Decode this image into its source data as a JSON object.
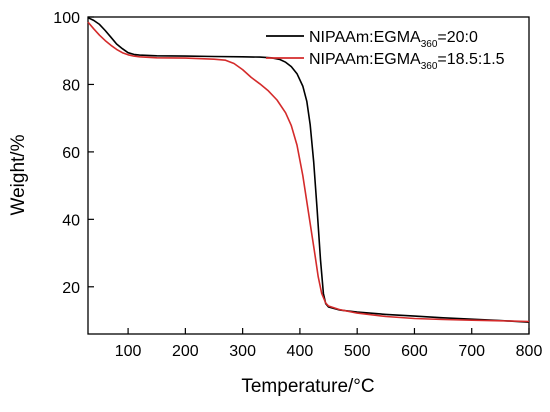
{
  "chart_data": {
    "type": "line",
    "xlabel": "Temperature/°C",
    "ylabel": "Weight/%",
    "xlim": [
      30,
      800
    ],
    "ylim": [
      6,
      100
    ],
    "xticks": [
      100,
      200,
      300,
      400,
      500,
      600,
      700,
      800
    ],
    "yticks": [
      20,
      40,
      60,
      80,
      100
    ],
    "grid": false,
    "legend_position": "top-right",
    "series": [
      {
        "name_parts": {
          "main": "NIPAAm:EGMA",
          "sub": "360",
          "tail": "=20:0"
        },
        "color": "#000000",
        "points": [
          [
            30,
            99.8
          ],
          [
            40,
            99
          ],
          [
            50,
            97.8
          ],
          [
            60,
            96
          ],
          [
            70,
            94
          ],
          [
            80,
            92
          ],
          [
            90,
            90.6
          ],
          [
            100,
            89.4
          ],
          [
            110,
            88.9
          ],
          [
            120,
            88.7
          ],
          [
            150,
            88.5
          ],
          [
            200,
            88.4
          ],
          [
            250,
            88.3
          ],
          [
            300,
            88.2
          ],
          [
            330,
            88.1
          ],
          [
            350,
            87.9
          ],
          [
            365,
            87.4
          ],
          [
            375,
            86.6
          ],
          [
            385,
            85.3
          ],
          [
            395,
            83.2
          ],
          [
            405,
            79.5
          ],
          [
            412,
            75
          ],
          [
            418,
            68
          ],
          [
            424,
            57
          ],
          [
            430,
            43
          ],
          [
            436,
            28
          ],
          [
            441,
            18
          ],
          [
            445,
            15
          ],
          [
            450,
            14
          ],
          [
            470,
            13.1
          ],
          [
            500,
            12.5
          ],
          [
            550,
            11.8
          ],
          [
            600,
            11.3
          ],
          [
            650,
            10.8
          ],
          [
            700,
            10.4
          ],
          [
            750,
            10
          ],
          [
            800,
            9.5
          ]
        ]
      },
      {
        "name_parts": {
          "main": "NIPAAm:EGMA",
          "sub": "360",
          "tail": "=18.5:1.5"
        },
        "color": "#d42b2b",
        "points": [
          [
            30,
            98.5
          ],
          [
            40,
            96.5
          ],
          [
            50,
            94.6
          ],
          [
            60,
            93
          ],
          [
            70,
            91.6
          ],
          [
            80,
            90.4
          ],
          [
            90,
            89.4
          ],
          [
            100,
            88.8
          ],
          [
            110,
            88.4
          ],
          [
            120,
            88.2
          ],
          [
            150,
            87.9
          ],
          [
            200,
            87.8
          ],
          [
            250,
            87.5
          ],
          [
            270,
            87.2
          ],
          [
            285,
            86.2
          ],
          [
            300,
            84.4
          ],
          [
            315,
            82.1
          ],
          [
            330,
            80.2
          ],
          [
            345,
            78.1
          ],
          [
            360,
            75.4
          ],
          [
            375,
            71.6
          ],
          [
            385,
            67.8
          ],
          [
            395,
            62
          ],
          [
            405,
            53
          ],
          [
            415,
            42
          ],
          [
            425,
            31
          ],
          [
            432,
            23
          ],
          [
            438,
            18
          ],
          [
            445,
            15.2
          ],
          [
            450,
            14.3
          ],
          [
            470,
            13.2
          ],
          [
            500,
            12.2
          ],
          [
            550,
            11.2
          ],
          [
            600,
            10.6
          ],
          [
            650,
            10.3
          ],
          [
            700,
            10.1
          ],
          [
            750,
            9.9
          ],
          [
            800,
            9.7
          ]
        ]
      }
    ]
  }
}
